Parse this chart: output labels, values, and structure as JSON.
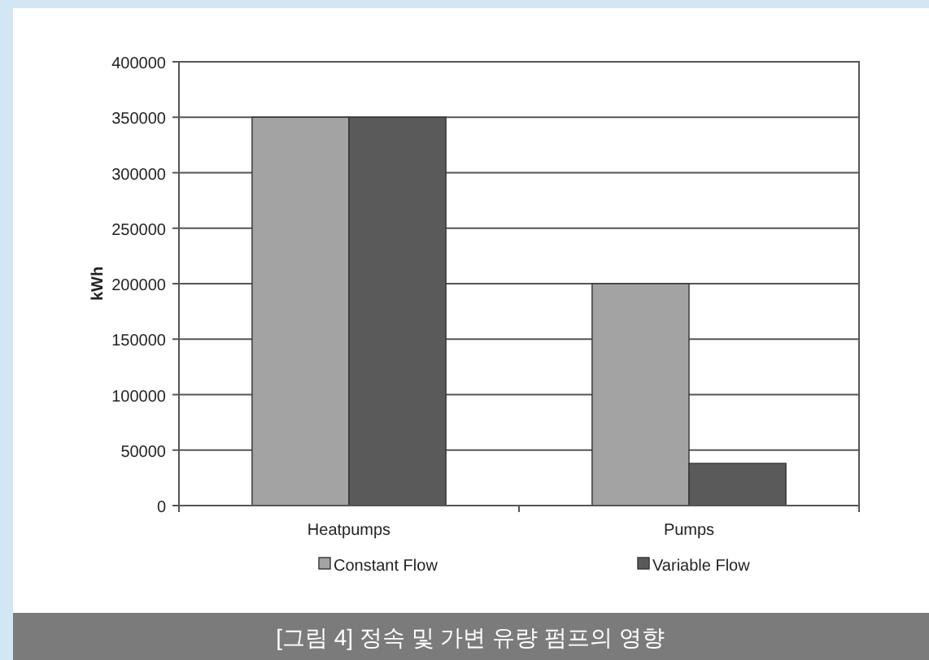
{
  "chart_data": {
    "type": "bar",
    "ylabel": "kWh",
    "categories": [
      "Heatpumps",
      "Pumps"
    ],
    "series": [
      {
        "name": "Constant Flow",
        "color": "#a3a3a3",
        "values": [
          350000,
          200000
        ]
      },
      {
        "name": "Variable Flow",
        "color": "#5a5a5a",
        "values": [
          350000,
          38000
        ]
      }
    ],
    "ylim": [
      0,
      400000
    ],
    "yticks": [
      0,
      50000,
      100000,
      150000,
      200000,
      250000,
      300000,
      350000,
      400000
    ],
    "grid": "y",
    "legend": "bottom",
    "annotations": [
      "[그림 4] 정속 및 가변 유량 펌프의 영향"
    ]
  }
}
